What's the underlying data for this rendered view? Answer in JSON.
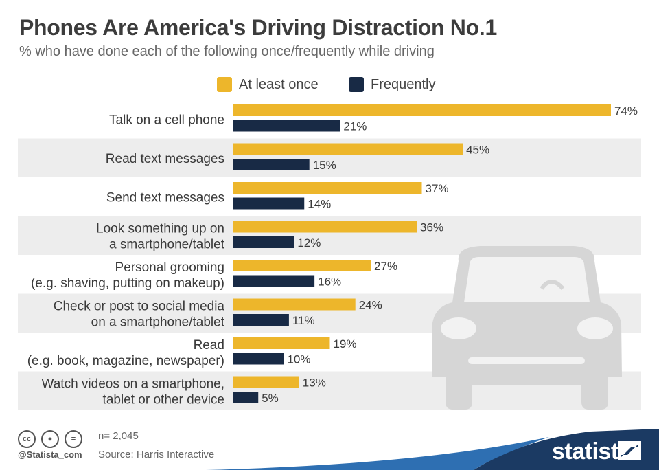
{
  "title": "Phones Are America's Driving Distraction No.1",
  "subtitle": "% who have done each of the following once/frequently while driving",
  "colors": {
    "at_least_once": "#EDB62B",
    "frequently": "#182A45",
    "band": "#EDEDED",
    "car": "#D6D6D6",
    "brand": "#1B3A63"
  },
  "chart_data": {
    "type": "bar",
    "orientation": "horizontal",
    "categories": [
      "Talk on a cell phone",
      "Read text messages",
      "Send text messages",
      "Look something up on a smartphone/tablet",
      "Personal grooming (e.g. shaving, putting on makeup)",
      "Check or post to social media on a smartphone/tablet",
      "Read (e.g. book, magazine, newspaper)",
      "Watch videos on a smartphone, tablet or other device"
    ],
    "category_lines": [
      [
        "Talk on a cell phone"
      ],
      [
        "Read text messages"
      ],
      [
        "Send text messages"
      ],
      [
        "Look something up on",
        "a smartphone/tablet"
      ],
      [
        "Personal grooming",
        "(e.g. shaving, putting on makeup)"
      ],
      [
        "Check or post to social media",
        "on a smartphone/tablet"
      ],
      [
        "Read",
        "(e.g. book, magazine, newspaper)"
      ],
      [
        "Watch videos on a smartphone,",
        "tablet or other device"
      ]
    ],
    "series": [
      {
        "name": "At least once",
        "values": [
          74,
          45,
          37,
          36,
          27,
          24,
          19,
          13
        ]
      },
      {
        "name": "Frequently",
        "values": [
          21,
          15,
          14,
          12,
          16,
          11,
          10,
          5
        ]
      }
    ],
    "value_suffix": "%",
    "legend_position": "top",
    "grid": false
  },
  "footer": {
    "sample": "n= 2,045",
    "source": "Source: Harris Interactive",
    "handle": "@Statista_com",
    "brand": "statista",
    "license_icons": [
      "cc-icon",
      "attribution-icon",
      "no-derivatives-icon"
    ]
  }
}
